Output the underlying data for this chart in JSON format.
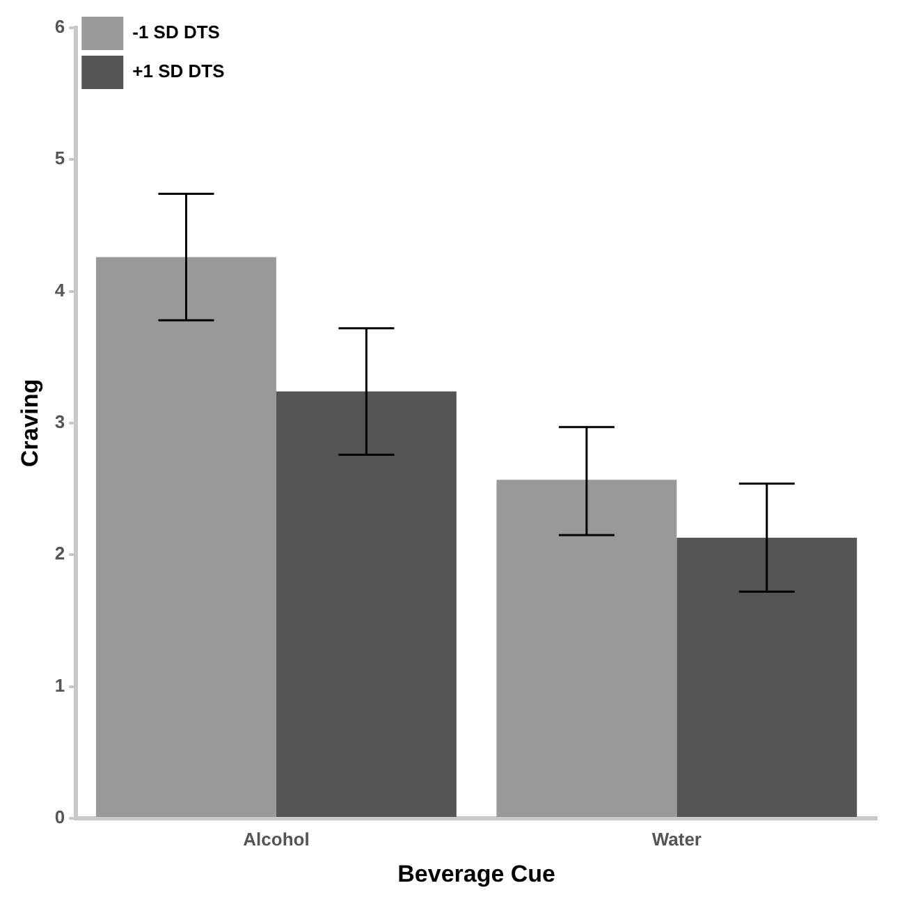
{
  "chart_data": {
    "type": "bar",
    "xlabel": "Beverage Cue",
    "ylabel": "Craving",
    "categories": [
      "Alcohol",
      "Water"
    ],
    "series": [
      {
        "name": "-1 SD DTS",
        "color": "#999999",
        "values": [
          4.26,
          2.57
        ],
        "errors": [
          [
            3.78,
            4.74
          ],
          [
            2.15,
            2.97
          ]
        ]
      },
      {
        "name": "+1 SD DTS",
        "color": "#555555",
        "values": [
          3.24,
          2.13
        ],
        "errors": [
          [
            2.76,
            3.72
          ],
          [
            1.72,
            2.54
          ]
        ]
      }
    ],
    "ylim": [
      0,
      6
    ],
    "yticks": [
      0,
      1,
      2,
      3,
      4,
      5,
      6
    ],
    "grid": false,
    "legend": "top left"
  }
}
